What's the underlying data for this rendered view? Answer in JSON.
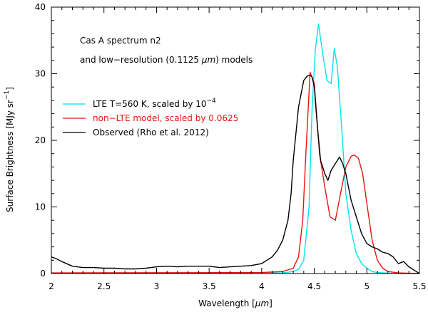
{
  "chart_data": {
    "type": "line",
    "title": "",
    "xlabel_prefix": "Wavelength [",
    "xlabel_unit": "μm",
    "xlabel_suffix": "]",
    "ylabel_prefix": "Surface Brightness [MJy sr",
    "ylabel_exp": "−1",
    "ylabel_suffix": "]",
    "xlim": [
      2,
      5.5
    ],
    "ylim": [
      0,
      40
    ],
    "xticks": [
      2,
      2.5,
      3,
      3.5,
      4,
      4.5,
      5,
      5.5
    ],
    "yticks": [
      0,
      10,
      20,
      30,
      40
    ],
    "grid": false,
    "annotations": {
      "line1": "Cas A spectrum n2",
      "line2_prefix": "and low−resolution (0.1125 ",
      "line2_unit": "μm",
      "line2_suffix": ") models"
    },
    "legend_position": "left-middle",
    "series": [
      {
        "name": "LTE T=560 K, scaled by 10−4",
        "label_prefix": "LTE T=560 K, scaled by 10",
        "label_exp": "−4",
        "color": "#00e5ee",
        "x": [
          2.0,
          4.0,
          4.2,
          4.3,
          4.35,
          4.4,
          4.45,
          4.48,
          4.51,
          4.54,
          4.58,
          4.62,
          4.66,
          4.69,
          4.72,
          4.76,
          4.8,
          4.85,
          4.9,
          4.95,
          5.0,
          5.05,
          5.1,
          5.2,
          5.3,
          5.5
        ],
        "y": [
          0.05,
          0.05,
          0.1,
          0.3,
          0.6,
          2.0,
          10.0,
          25.0,
          33.5,
          37.5,
          33.0,
          29.0,
          28.5,
          33.8,
          31.0,
          22.0,
          12.0,
          6.5,
          3.0,
          1.5,
          0.8,
          0.3,
          0.15,
          0.05,
          0.02,
          0.0
        ]
      },
      {
        "name": "non−LTE model, scaled by 0.0625",
        "label_prefix": "non−LTE model, scaled by 0.0625",
        "label_exp": "",
        "color": "#e8140e",
        "x": [
          2.0,
          4.0,
          4.2,
          4.3,
          4.35,
          4.39,
          4.42,
          4.46,
          4.5,
          4.55,
          4.6,
          4.65,
          4.7,
          4.75,
          4.8,
          4.85,
          4.88,
          4.92,
          4.96,
          5.0,
          5.05,
          5.1,
          5.15,
          5.2,
          5.3,
          5.5
        ],
        "y": [
          0.1,
          0.15,
          0.3,
          0.8,
          2.5,
          8.0,
          18.0,
          30.2,
          28.5,
          18.0,
          13.0,
          8.5,
          8.0,
          12.0,
          16.0,
          17.6,
          17.8,
          17.3,
          15.0,
          10.5,
          5.0,
          2.0,
          0.8,
          0.3,
          0.1,
          0.0
        ]
      },
      {
        "name": "Observed (Rho et al. 2012)",
        "label_prefix": "Observed (Rho et al. 2012)",
        "label_exp": "",
        "color": "#000000",
        "x": [
          2.0,
          2.05,
          2.1,
          2.2,
          2.3,
          2.4,
          2.5,
          2.6,
          2.7,
          2.8,
          2.9,
          3.0,
          3.1,
          3.2,
          3.3,
          3.4,
          3.5,
          3.6,
          3.7,
          3.8,
          3.9,
          4.0,
          4.05,
          4.1,
          4.15,
          4.2,
          4.25,
          4.28,
          4.3,
          4.35,
          4.4,
          4.43,
          4.46,
          4.48,
          4.5,
          4.53,
          4.56,
          4.6,
          4.63,
          4.66,
          4.7,
          4.74,
          4.77,
          4.8,
          4.85,
          4.9,
          4.95,
          5.0,
          5.05,
          5.1,
          5.15,
          5.2,
          5.25,
          5.3,
          5.35,
          5.4,
          5.45,
          5.5
        ],
        "y": [
          2.5,
          2.2,
          1.8,
          1.1,
          0.9,
          0.9,
          0.8,
          0.8,
          0.7,
          0.7,
          0.8,
          1.0,
          1.1,
          1.0,
          1.1,
          1.1,
          1.1,
          0.9,
          1.0,
          1.1,
          1.2,
          1.5,
          2.0,
          2.5,
          3.5,
          5.0,
          8.0,
          12.0,
          17.0,
          25.0,
          29.0,
          29.6,
          29.8,
          29.5,
          28.0,
          22.0,
          17.0,
          15.0,
          14.0,
          15.5,
          16.5,
          17.5,
          16.5,
          15.0,
          11.0,
          8.5,
          6.0,
          4.5,
          4.0,
          3.7,
          3.2,
          3.0,
          2.5,
          1.5,
          1.8,
          1.0,
          0.5,
          0.0
        ]
      }
    ]
  }
}
